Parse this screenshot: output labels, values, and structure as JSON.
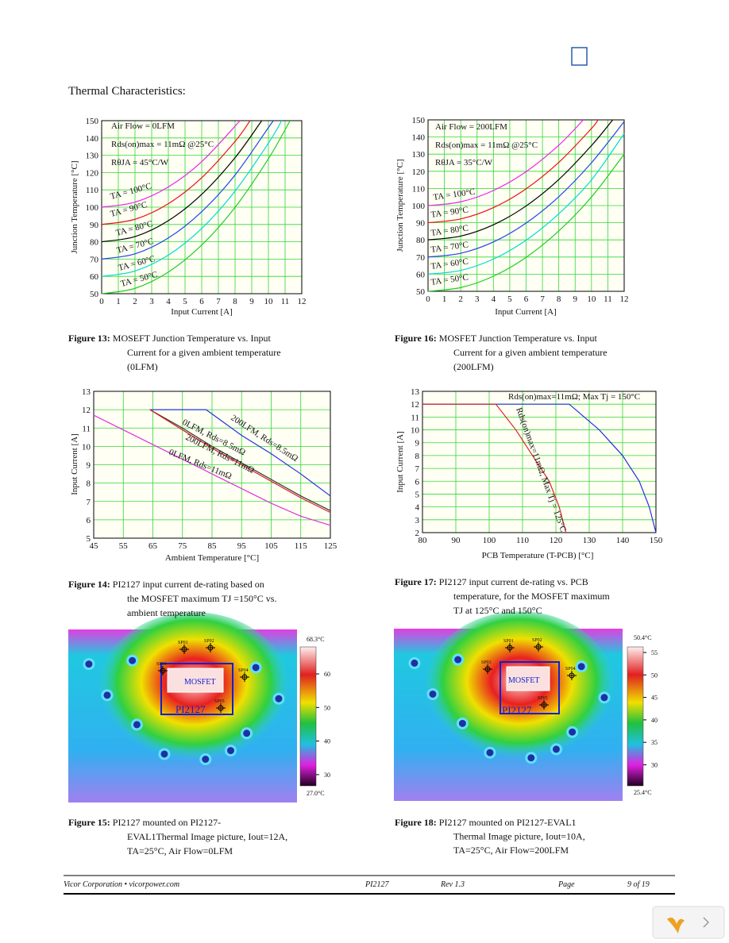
{
  "title": "Thermal Characteristics:",
  "chart_data": [
    {
      "type": "line",
      "xlabel": "Input Current [A]",
      "ylabel": "Junction Temperature [°C]",
      "annotations": [
        "Air Flow = 0LFM",
        "Rds(on)max = 11mΩ @25°C",
        "RθJA = 45°C/W"
      ],
      "xlim": [
        0,
        12
      ],
      "ylim": [
        50,
        150
      ],
      "xticks": [
        0,
        1,
        2,
        3,
        4,
        5,
        6,
        7,
        8,
        9,
        10,
        11,
        12
      ],
      "yticks": [
        50,
        60,
        70,
        80,
        90,
        100,
        110,
        120,
        130,
        140,
        150
      ],
      "grid": true,
      "series": [
        {
          "name": "TA = 50°C",
          "color": "#22cc22",
          "x": [
            0,
            2,
            4,
            6,
            8,
            10,
            11.3
          ],
          "values": [
            50,
            53.1,
            62.5,
            78.1,
            99.9,
            128,
            150
          ]
        },
        {
          "name": "TA = 60°C",
          "color": "#00d8d8",
          "x": [
            0,
            2,
            4,
            6,
            8,
            10,
            10.8
          ],
          "values": [
            60,
            63.1,
            72.3,
            87.7,
            109.3,
            137,
            150
          ]
        },
        {
          "name": "TA = 70°C",
          "color": "#2244ee",
          "x": [
            0,
            2,
            4,
            6,
            8,
            10,
            10.3
          ],
          "values": [
            70,
            73,
            82.2,
            97.4,
            118.6,
            146,
            150
          ]
        },
        {
          "name": "TA = 80°C",
          "color": "#000000",
          "x": [
            0,
            2,
            4,
            6,
            8,
            9.6
          ],
          "values": [
            80,
            83,
            92.2,
            107.4,
            128.6,
            150
          ]
        },
        {
          "name": "TA = 90°C",
          "color": "#ee1111",
          "x": [
            0,
            2,
            4,
            6,
            8,
            8.9
          ],
          "values": [
            90,
            93,
            102,
            117,
            138,
            150
          ]
        },
        {
          "name": "TA = 100°C",
          "color": "#ee22ee",
          "x": [
            0,
            2,
            4,
            6,
            8.3
          ],
          "values": [
            100,
            102.9,
            111.7,
            126.3,
            150
          ]
        }
      ]
    },
    {
      "type": "line",
      "xlabel": "Input Current [A]",
      "ylabel": "Junction Temperature [°C]",
      "annotations": [
        "Air Flow = 200LFM",
        "Rds(on)max = 11mΩ @25°C",
        "RθJA = 35°C/W"
      ],
      "xlim": [
        0,
        12
      ],
      "ylim": [
        50,
        150
      ],
      "xticks": [
        0,
        1,
        2,
        3,
        4,
        5,
        6,
        7,
        8,
        9,
        10,
        11,
        12
      ],
      "yticks": [
        50,
        60,
        70,
        80,
        90,
        100,
        110,
        120,
        130,
        140,
        150
      ],
      "grid": true,
      "series": [
        {
          "name": "TA = 50°C",
          "color": "#22cc22",
          "x": [
            0,
            2,
            4,
            6,
            8,
            10,
            12
          ],
          "values": [
            50,
            52.2,
            58.8,
            69.8,
            85.2,
            105,
            130
          ]
        },
        {
          "name": "TA = 60°C",
          "color": "#00d8d8",
          "x": [
            0,
            2,
            4,
            6,
            8,
            10,
            12
          ],
          "values": [
            60,
            62.2,
            68.8,
            79.8,
            95.2,
            115,
            142
          ]
        },
        {
          "name": "TA = 70°C",
          "color": "#2244ee",
          "x": [
            0,
            2,
            4,
            6,
            8,
            10,
            12
          ],
          "values": [
            70,
            72.2,
            78.8,
            89.8,
            105.2,
            125,
            149
          ]
        },
        {
          "name": "TA = 80°C",
          "color": "#000000",
          "x": [
            0,
            2,
            4,
            6,
            8,
            10,
            11.3
          ],
          "values": [
            80,
            82.2,
            88.8,
            99.8,
            115.2,
            135,
            150
          ]
        },
        {
          "name": "TA = 90°C",
          "color": "#ee1111",
          "x": [
            0,
            2,
            4,
            6,
            8,
            10,
            10.4
          ],
          "values": [
            90,
            92.2,
            98.8,
            109.8,
            125.2,
            145,
            150
          ]
        },
        {
          "name": "TA = 100°C",
          "color": "#ee22ee",
          "x": [
            0,
            2,
            4,
            6,
            8,
            9.5
          ],
          "values": [
            100,
            102.2,
            108.8,
            119.8,
            135.2,
            150
          ]
        }
      ]
    },
    {
      "type": "line",
      "xlabel": "Ambient Temperature [°C]",
      "ylabel": "Input Current [A]",
      "xlim": [
        45,
        125
      ],
      "ylim": [
        5,
        13
      ],
      "xticks": [
        45,
        55,
        65,
        75,
        85,
        95,
        105,
        115,
        125
      ],
      "yticks": [
        5,
        6,
        7,
        8,
        9,
        10,
        11,
        12,
        13
      ],
      "grid": true,
      "series": [
        {
          "name": "200LFM, Rds=8.5mΩ",
          "color": "#2233dd",
          "x": [
            64,
            83,
            95,
            105,
            115,
            125
          ],
          "values": [
            12,
            12,
            10.6,
            9.6,
            8.5,
            7.3
          ]
        },
        {
          "name": "0LFM, Rds=8.5mΩ",
          "color": "#333333",
          "x": [
            64,
            75,
            85,
            95,
            105,
            115,
            125
          ],
          "values": [
            12,
            11,
            10,
            9.1,
            8.2,
            7.3,
            6.5
          ]
        },
        {
          "name": "200LFM, Rds=11mΩ",
          "color": "#dd2222",
          "x": [
            64,
            75,
            85,
            95,
            105,
            115,
            125
          ],
          "values": [
            12,
            10.9,
            9.9,
            9,
            8.1,
            7.2,
            6.4
          ]
        },
        {
          "name": "0LFM, Rds=11mΩ",
          "color": "#dd33dd",
          "x": [
            45,
            55,
            65,
            75,
            85,
            95,
            105,
            115,
            125
          ],
          "values": [
            11.7,
            10.9,
            10.1,
            9.3,
            8.5,
            7.7,
            6.9,
            6.2,
            5.7
          ]
        }
      ]
    },
    {
      "type": "line",
      "xlabel": "PCB Temperature (T-PCB) [°C]",
      "ylabel": "Input Current [A]",
      "xlim": [
        80,
        150
      ],
      "ylim": [
        2,
        13
      ],
      "xticks": [
        80,
        90,
        100,
        110,
        120,
        130,
        140,
        150
      ],
      "yticks": [
        2,
        3,
        4,
        5,
        6,
        7,
        8,
        9,
        10,
        11,
        12,
        13
      ],
      "grid": true,
      "series": [
        {
          "name": "Rds(on)max=11mΩ; Max Tj = 150°C",
          "color": "#2233dd",
          "x": [
            80,
            124,
            133,
            140,
            145,
            148,
            150
          ],
          "values": [
            12,
            12,
            10,
            8,
            6,
            4,
            2
          ]
        },
        {
          "name": "Rds(on)max=11mΩ, Max Tj = 125°C",
          "color": "#dd2222",
          "x": [
            80,
            102,
            108,
            113,
            118,
            121,
            123
          ],
          "values": [
            12,
            12,
            10,
            8,
            6,
            4,
            2
          ]
        }
      ]
    }
  ],
  "thermal_images": [
    {
      "max_label": "68.3°C",
      "min_label": "27.0°C",
      "scale_ticks": [
        60,
        50,
        40,
        30
      ],
      "box_label": "MOSFET",
      "chip_label": "PI2127",
      "spots": [
        "SP01",
        "SP02",
        "SP03",
        "SP04",
        "SP05"
      ]
    },
    {
      "max_label": "50.4°C",
      "min_label": "25.4°C",
      "scale_ticks": [
        55,
        50,
        45,
        40,
        35,
        30
      ],
      "box_label": "MOSFET",
      "chip_label": "PI2127",
      "spots": [
        "SP01",
        "SP02",
        "SP03",
        "SP04",
        "SP05"
      ]
    }
  ],
  "captions": [
    {
      "label": "Figure 13:",
      "lines": [
        " MOSEFT Junction Temperature vs. Input",
        "Current for a given ambient temperature",
        "(0LFM)"
      ]
    },
    {
      "label": "Figure 16:",
      "lines": [
        " MOSFET Junction Temperature vs. Input",
        "Current for a given ambient temperature",
        "(200LFM)"
      ]
    },
    {
      "label": "Figure 14:",
      "lines": [
        " PI2127 input current de-rating based on",
        "the MOSFET maximum TJ =150°C vs.",
        "ambient temperature"
      ]
    },
    {
      "label": "Figure 17:",
      "lines": [
        " PI2127 input current de-rating vs. PCB",
        "temperature, for the MOSFET maximum",
        "TJ at 125°C and 150°C"
      ]
    },
    {
      "label": "Figure 15:",
      "lines": [
        " PI2127 mounted on PI2127-",
        "EVAL1Thermal Image picture, Iout=12A,",
        "TA=25°C, Air Flow=0LFM"
      ]
    },
    {
      "label": "Figure 18:",
      "lines": [
        " PI2127 mounted on PI2127-EVAL1",
        "Thermal Image picture, Iout=10A,",
        "TA=25°C, Air Flow=200LFM"
      ]
    }
  ],
  "footer": {
    "company": "Vicor Corporation • vicorpower.com",
    "product": "PI2127",
    "rev": "Rev 1.3",
    "page_word": "Page",
    "page": "9 of 19"
  }
}
